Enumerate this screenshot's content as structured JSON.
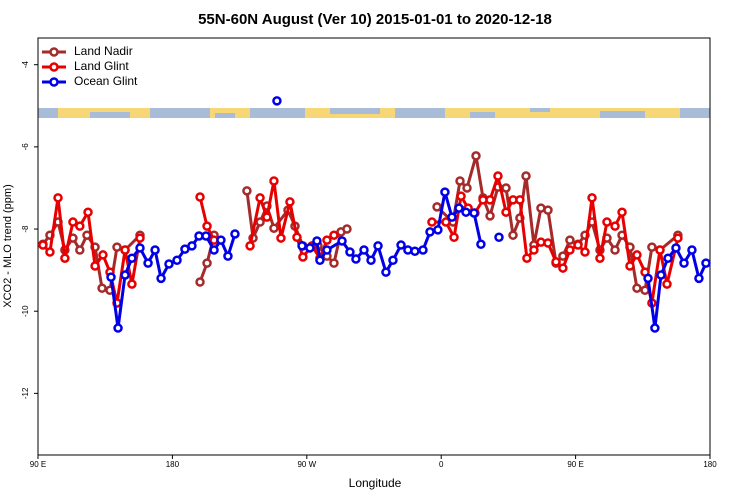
{
  "chart_data": {
    "type": "line",
    "title": "55N-60N August (Ver 10)   2015-01-01 to 2020-12-18",
    "x_label": "Longitude",
    "y_label": "XCO2 - MLO trend (ppm)",
    "xlim": [
      90,
      540
    ],
    "xticks": [
      {
        "value": 90,
        "label": "90 E"
      },
      180,
      {
        "value": 270,
        "label": "90 W"
      },
      {
        "value": 360,
        "label": "0"
      },
      {
        "value": 450,
        "label": "90 E"
      },
      {
        "value": 540,
        "label": "180"
      }
    ],
    "ylim": [
      -13.5,
      -3.35
    ],
    "yticks": [
      -4,
      -6,
      -8,
      -10,
      -12
    ],
    "legend": "top-left",
    "series": [
      {
        "name": "Land Nadir",
        "color": "#a52a2a",
        "x": [
          93.3,
          98,
          103.4,
          108,
          113.4,
          118,
          122.8,
          128.2,
          132.9,
          138.2,
          142.9,
          148.3,
          158.3,
          null,
          198.5,
          203.2,
          207.9,
          null,
          229.9,
          234,
          238.7,
          243.3,
          248,
          257.4,
          262.1,
          267.4,
          277.5,
          283.5,
          288.2,
          292.9,
          296.9,
          null,
          357.2,
          367.9,
          372.6,
          377.3,
          383.3,
          388,
          392.7,
          398,
          403.4,
          408.1,
          412.7,
          416.8,
          422.1,
          426.8,
          431.5,
          436.9,
          441.5,
          446.2,
          451.6,
          456.3,
          461,
          466.3,
          471,
          476.4,
          481.1,
          486.4,
          491.1,
          496.5,
          501.1,
          506.5,
          518.5
        ],
        "values": [
          -8.37,
          -8.15,
          -7.83,
          -8.51,
          -8.22,
          -8.51,
          -8.15,
          -8.44,
          -9.44,
          -9.49,
          -8.44,
          -8.51,
          -8.15,
          null,
          -9.29,
          -8.83,
          -8.15,
          null,
          -7.07,
          -8.22,
          -7.83,
          -7.44,
          -7.98,
          -7.54,
          -7.93,
          -8.41,
          -8.41,
          -8.66,
          -8.83,
          -8.07,
          -8.0,
          null,
          -7.46,
          -7.83,
          -6.83,
          -7.0,
          -6.22,
          -7.24,
          -7.68,
          -6.98,
          -7.0,
          -8.15,
          -7.73,
          -6.71,
          -8.39,
          -7.49,
          -7.54,
          -8.83,
          -8.66,
          -8.27,
          -8.37,
          -8.15,
          -7.83,
          -8.51,
          -8.22,
          -8.51,
          -8.15,
          -8.44,
          -9.44,
          -9.49,
          -8.44,
          -8.51,
          -8.15
        ]
      },
      {
        "name": "Land Glint",
        "color": "#e80000",
        "x": [
          93.3,
          98,
          103.4,
          108,
          113.4,
          118,
          123.5,
          128.2,
          133.5,
          138.2,
          142.9,
          148.3,
          152.9,
          158.3,
          null,
          198.5,
          203.2,
          207.9,
          null,
          232,
          238.7,
          243.3,
          248,
          252.7,
          258.7,
          263.4,
          267.4,
          273.5,
          278.8,
          283.5,
          288.2,
          null,
          353.8,
          363.2,
          368.6,
          373.3,
          378,
          382.6,
          388,
          392.7,
          398,
          403.4,
          408.1,
          412.7,
          417.4,
          422.1,
          426.8,
          431.5,
          436.9,
          441.5,
          446.2,
          451.6,
          456.3,
          461,
          466.3,
          471,
          476.4,
          481.1,
          486.4,
          491.1,
          496.5,
          501.1,
          506.5,
          511.2,
          518.5
        ],
        "values": [
          -8.39,
          -8.56,
          -7.24,
          -8.71,
          -7.83,
          -7.93,
          -7.59,
          -8.9,
          -8.63,
          -9.05,
          -9.8,
          -8.51,
          -9.34,
          -8.22,
          null,
          -7.22,
          -7.93,
          -8.27,
          null,
          -8.41,
          -7.24,
          -7.71,
          -6.83,
          -8.22,
          -7.34,
          -8.2,
          -8.68,
          -8.41,
          -8.71,
          -8.27,
          -8.15,
          null,
          -7.83,
          -7.83,
          -8.2,
          -7.2,
          -7.49,
          -7.61,
          -7.29,
          -7.29,
          -6.71,
          -7.59,
          -7.29,
          -7.29,
          -8.71,
          -8.51,
          -8.32,
          -8.34,
          -8.8,
          -8.95,
          -8.51,
          -8.39,
          -8.56,
          -7.24,
          -8.71,
          -7.83,
          -7.93,
          -7.59,
          -8.9,
          -8.63,
          -9.05,
          -9.8,
          -8.51,
          -9.34,
          -8.22
        ]
      },
      {
        "name": "Ocean Glint",
        "color": "#0000e8",
        "x": [
          138.9,
          143.6,
          148.3,
          152.9,
          158.3,
          163.7,
          168.4,
          172.4,
          177.7,
          183.1,
          188.4,
          193.1,
          197.8,
          202.5,
          207.9,
          212.5,
          217.2,
          221.9,
          null,
          250,
          null,
          266.8,
          272.1,
          276.8,
          278.8,
          283.5,
          293.6,
          298.9,
          302.9,
          308.3,
          313,
          317.7,
          323,
          327.7,
          333.1,
          337.7,
          342.4,
          347.8,
          352.5,
          357.8,
          362.5,
          367.2,
          371.9,
          376.6,
          382,
          386.6,
          null,
          398.7,
          null,
          498.5,
          503.1,
          507.2,
          511.9,
          517.2,
          522.6,
          527.9,
          532.6,
          537.3
        ],
        "values": [
          -9.17,
          -10.41,
          -9.12,
          -8.71,
          -8.46,
          -8.83,
          -8.51,
          -9.2,
          -8.85,
          -8.76,
          -8.49,
          -8.41,
          -8.17,
          -8.17,
          -8.51,
          -8.27,
          -8.66,
          -8.12,
          null,
          -4.88,
          null,
          -8.41,
          -8.46,
          -8.29,
          -8.76,
          -8.51,
          -8.29,
          -8.56,
          -8.73,
          -8.51,
          -8.76,
          -8.41,
          -9.05,
          -8.76,
          -8.39,
          -8.51,
          -8.54,
          -8.51,
          -8.07,
          -8.02,
          -7.1,
          -7.71,
          -7.49,
          -7.59,
          -7.61,
          -8.37,
          null,
          -8.2,
          null,
          -9.2,
          -10.41,
          -9.12,
          -8.71,
          -8.46,
          -8.83,
          -8.51,
          -9.2,
          -8.83
        ]
      }
    ]
  }
}
